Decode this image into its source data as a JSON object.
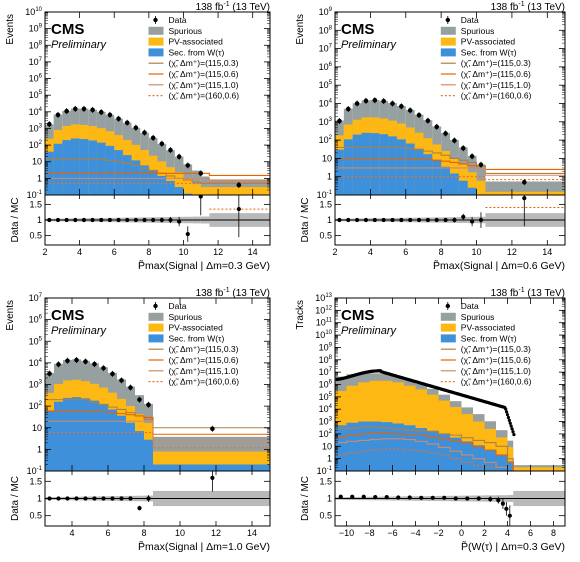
{
  "chart_data": [
    {
      "type": "bar",
      "lumi": "138 fb",
      "lumi_sup": "-1",
      "energy": "(13 TeV)",
      "experiment": "CMS",
      "status": "Preliminary",
      "ylabel": "Events",
      "ratio_label": "Data / MC",
      "xlabel": "P̃max(Signal | Δm=0.3 GeV)",
      "xlim": [
        2,
        15
      ],
      "xticks": [
        2,
        4,
        6,
        8,
        10,
        12,
        14
      ],
      "ylog": [
        -1,
        10
      ],
      "bins": [
        2.0,
        2.5,
        3.0,
        3.5,
        4.0,
        4.5,
        5.0,
        5.5,
        6.0,
        6.5,
        7.0,
        7.5,
        8.0,
        8.5,
        9.0,
        9.5,
        10.0,
        10.5,
        11.0,
        11.5,
        15.0
      ],
      "stack": {
        "spurious": [
          1500,
          6000,
          10000,
          14000,
          14000,
          12000,
          9000,
          6000,
          3500,
          2000,
          1000,
          500,
          250,
          110,
          45,
          18,
          6,
          2.5,
          1,
          0.5
        ],
        "pv": [
          200,
          700,
          1200,
          1500,
          1400,
          1200,
          900,
          600,
          350,
          180,
          90,
          45,
          20,
          9,
          4,
          2,
          0.8,
          0.4,
          0.2,
          0.2
        ],
        "sec": [
          40,
          120,
          200,
          250,
          230,
          190,
          140,
          90,
          50,
          25,
          12,
          6,
          3,
          1.4,
          0.7,
          0.3,
          0.12,
          0.05,
          0.1,
          0.1
        ]
      },
      "signals": [
        [
          15,
          15,
          15,
          15,
          15,
          15,
          15,
          12,
          10,
          8,
          6,
          4,
          3,
          2,
          1.4,
          1,
          0.8,
          0.6,
          0.5,
          0.5
        ],
        [
          2,
          2,
          2,
          2,
          2,
          2,
          2,
          2,
          2,
          2,
          2,
          2,
          2,
          2,
          2,
          2,
          2,
          2,
          2,
          1.5
        ],
        [
          1,
          1,
          1,
          1,
          1,
          1,
          1,
          1,
          1,
          1,
          1,
          1,
          1,
          1,
          1,
          1,
          1,
          1,
          1,
          0.8
        ],
        [
          0.5,
          0.5,
          0.5,
          0.5,
          0.5,
          0.5,
          0.5,
          0.5,
          0.5,
          0.5,
          0.5,
          0.5,
          0.5,
          0.5,
          0.5,
          0.5,
          0.5,
          0.5,
          0.5,
          0.6
        ]
      ],
      "data_x": [
        2.25,
        2.75,
        3.25,
        3.75,
        4.25,
        4.75,
        5.25,
        5.75,
        6.25,
        6.75,
        7.25,
        7.75,
        8.25,
        8.75,
        9.25,
        9.75,
        10.25,
        11.0,
        13.2
      ],
      "data_y": [
        1800,
        6500,
        11000,
        15000,
        15000,
        13000,
        9500,
        6500,
        3800,
        2200,
        1100,
        560,
        270,
        120,
        50,
        20,
        6,
        2,
        0.4
      ],
      "ratio_x": [
        2.25,
        2.75,
        3.25,
        3.75,
        4.25,
        4.75,
        5.25,
        5.75,
        6.25,
        6.75,
        7.25,
        7.75,
        8.25,
        8.75,
        9.25,
        9.75,
        10.25,
        11.0,
        13.2
      ],
      "ratio_y": [
        1.0,
        1.0,
        1.0,
        1.0,
        1.0,
        1.0,
        1.0,
        1.0,
        1.0,
        1.0,
        1.0,
        1.0,
        1.0,
        1.0,
        1.0,
        0.95,
        0.55,
        1.75,
        1.35
      ],
      "ratio_err": [
        0.02,
        0.02,
        0.02,
        0.02,
        0.02,
        0.02,
        0.02,
        0.02,
        0.02,
        0.03,
        0.04,
        0.05,
        0.06,
        0.08,
        0.1,
        0.15,
        0.25,
        0.6,
        0.9
      ],
      "ratio_ylim": [
        0.2,
        1.8
      ],
      "ratio_yticks": [
        0.5,
        1,
        1.5
      ],
      "ratio_sig_line": 1.35
    },
    {
      "type": "bar",
      "lumi": "138 fb",
      "lumi_sup": "-1",
      "energy": "(13 TeV)",
      "experiment": "CMS",
      "status": "Preliminary",
      "ylabel": "Events",
      "ratio_label": "Data / MC",
      "xlabel": "P̃max(Signal | Δm=0.6 GeV)",
      "xlim": [
        2,
        15
      ],
      "xticks": [
        2,
        4,
        6,
        8,
        10,
        12,
        14
      ],
      "ylog": [
        -1,
        9
      ],
      "bins": [
        2.0,
        2.5,
        3.0,
        3.5,
        4.0,
        4.5,
        5.0,
        5.5,
        6.0,
        6.5,
        7.0,
        7.5,
        8.0,
        8.5,
        9.0,
        9.5,
        10.0,
        10.5,
        15.0
      ],
      "stack": {
        "spurious": [
          1000,
          4500,
          9000,
          13000,
          14000,
          12500,
          9500,
          6500,
          4000,
          2200,
          1100,
          500,
          220,
          90,
          35,
          12,
          4,
          0.4
        ],
        "pv": [
          150,
          600,
          1100,
          1500,
          1500,
          1300,
          1000,
          700,
          420,
          220,
          110,
          50,
          22,
          9,
          4,
          1.5,
          0.5,
          0.1
        ],
        "sec": [
          30,
          110,
          200,
          250,
          240,
          210,
          160,
          110,
          65,
          34,
          17,
          8,
          3.5,
          1.5,
          0.6,
          0.25,
          0.1,
          0.05
        ]
      },
      "signals": [
        [
          40,
          40,
          40,
          40,
          40,
          40,
          40,
          40,
          35,
          30,
          25,
          20,
          15,
          10,
          8,
          6,
          4,
          1.5
        ],
        [
          10,
          10,
          10,
          10,
          10,
          10,
          10,
          10,
          10,
          9,
          9,
          8,
          7,
          6,
          5,
          4,
          3,
          2.5
        ],
        [
          3,
          3,
          3,
          3,
          3,
          3,
          3,
          3,
          3,
          3,
          3,
          3,
          3,
          3,
          3,
          3,
          3,
          1.2
        ],
        [
          1,
          1,
          1,
          1,
          1,
          1,
          1,
          1,
          1,
          1,
          1,
          1,
          1,
          1,
          1,
          1,
          1,
          0.7
        ]
      ],
      "data_x": [
        2.25,
        2.75,
        3.25,
        3.75,
        4.25,
        4.75,
        5.25,
        5.75,
        6.25,
        6.75,
        7.25,
        7.75,
        8.25,
        8.75,
        9.25,
        9.75,
        10.25,
        12.7
      ],
      "data_y": [
        1100,
        5000,
        10000,
        14000,
        15000,
        13500,
        10000,
        7000,
        4200,
        2300,
        1150,
        530,
        230,
        95,
        36,
        13,
        4.5,
        0.5
      ],
      "ratio_x": [
        2.25,
        2.75,
        3.25,
        3.75,
        4.25,
        4.75,
        5.25,
        5.75,
        6.25,
        6.75,
        7.25,
        7.75,
        8.25,
        8.75,
        9.25,
        9.75,
        10.25,
        12.7
      ],
      "ratio_y": [
        1.0,
        1.0,
        1.0,
        1.0,
        1.0,
        1.0,
        1.0,
        1.0,
        1.0,
        1.0,
        1.0,
        1.0,
        1.0,
        1.0,
        1.1,
        0.95,
        1.0,
        1.7
      ],
      "ratio_err": [
        0.02,
        0.02,
        0.02,
        0.02,
        0.02,
        0.02,
        0.02,
        0.02,
        0.02,
        0.03,
        0.04,
        0.05,
        0.06,
        0.08,
        0.1,
        0.15,
        0.25,
        0.9
      ],
      "ratio_ylim": [
        0.2,
        1.8
      ],
      "ratio_yticks": [
        0.5,
        1,
        1.5
      ],
      "ratio_sig_line": 1.4
    },
    {
      "type": "bar",
      "lumi": "138 fb",
      "lumi_sup": "-1",
      "energy": "(13 TeV)",
      "experiment": "CMS",
      "status": "Preliminary",
      "ylabel": "Events",
      "ratio_label": "Data / MC",
      "xlabel": "P̃max(Signal | Δm=1.0 GeV)",
      "xlim": [
        2.5,
        15
      ],
      "xticks": [
        4,
        6,
        8,
        10,
        12,
        14
      ],
      "ylog": [
        -1,
        7
      ],
      "bins": [
        2.5,
        3.0,
        3.5,
        4.0,
        4.5,
        5.0,
        5.5,
        6.0,
        6.5,
        7.0,
        7.5,
        8.0,
        8.5,
        15.0
      ],
      "stack": {
        "spurious": [
          3000,
          8000,
          12000,
          13000,
          11000,
          8500,
          5500,
          3000,
          1500,
          700,
          280,
          110,
          3
        ],
        "pv": [
          350,
          900,
          1300,
          1400,
          1200,
          900,
          600,
          350,
          180,
          85,
          35,
          14,
          0.6
        ],
        "sec": [
          60,
          160,
          240,
          260,
          230,
          180,
          120,
          70,
          36,
          17,
          7,
          2.8,
          0.2
        ]
      },
      "signals": [
        [
          200,
          200,
          200,
          200,
          200,
          150,
          120,
          90,
          70,
          50,
          35,
          25,
          10
        ],
        [
          60,
          60,
          60,
          60,
          60,
          60,
          55,
          50,
          45,
          40,
          35,
          30,
          5
        ],
        [
          20,
          20,
          20,
          20,
          20,
          20,
          20,
          20,
          20,
          20,
          20,
          20,
          2.5
        ],
        [
          6,
          6,
          6,
          6,
          6,
          6,
          6,
          6,
          6,
          6,
          6,
          6,
          1.2
        ]
      ],
      "data_x": [
        2.75,
        3.25,
        3.75,
        4.25,
        4.75,
        5.25,
        5.75,
        6.25,
        6.75,
        7.25,
        7.75,
        8.25,
        11.8
      ],
      "data_y": [
        3200,
        8500,
        12500,
        13500,
        11500,
        8800,
        5700,
        3100,
        1550,
        720,
        200,
        115,
        9
      ],
      "ratio_x": [
        2.75,
        3.25,
        3.75,
        4.25,
        4.75,
        5.25,
        5.75,
        6.25,
        6.75,
        7.25,
        7.75,
        8.25,
        11.8
      ],
      "ratio_y": [
        1.0,
        1.0,
        1.0,
        1.0,
        1.0,
        1.0,
        1.0,
        1.0,
        1.0,
        1.0,
        0.72,
        1.0,
        1.6
      ],
      "ratio_err": [
        0.02,
        0.02,
        0.02,
        0.02,
        0.02,
        0.02,
        0.02,
        0.03,
        0.04,
        0.05,
        0.07,
        0.1,
        0.4
      ],
      "ratio_ylim": [
        0.2,
        1.8
      ],
      "ratio_yticks": [
        0.5,
        1,
        1.5
      ],
      "ratio_sig_line": null
    },
    {
      "type": "bar",
      "lumi": "138 fb",
      "lumi_sup": "-1",
      "energy": "(13 TeV)",
      "experiment": "CMS",
      "status": "Preliminary",
      "ylabel": "Tracks",
      "ratio_label": "Data / MC",
      "xlabel": "P̃(W(τ) | Δm=0.3 GeV)",
      "xlim": [
        -11,
        9
      ],
      "xticks": [
        -10,
        -8,
        -6,
        -4,
        -2,
        0,
        2,
        4,
        6,
        8
      ],
      "ylog": [
        -1,
        13
      ],
      "stack_edges": [
        -11,
        -10,
        -9,
        -8,
        -7,
        -6,
        -5,
        -4,
        -3,
        -2,
        -1,
        0,
        1,
        2,
        3,
        4,
        4.5,
        9
      ],
      "stack": {
        "spurious": [
          4000000.0,
          6000000.0,
          7000000.0,
          6000000.0,
          5000000.0,
          3000000.0,
          1500000.0,
          700000.0,
          300000.0,
          100000.0,
          30000.0,
          10000.0,
          3000,
          800,
          150,
          20,
          0.1
        ],
        "pv": [
          300000.0,
          800000.0,
          1500000.0,
          2000000.0,
          2000000.0,
          1500000.0,
          800000.0,
          400000.0,
          150000.0,
          50000.0,
          15000.0,
          4000,
          1000,
          250,
          50,
          8,
          0.1
        ],
        "sec": [
          500,
          800,
          1000,
          1000,
          900,
          700,
          500,
          300,
          180,
          100,
          50,
          25,
          12,
          5,
          2,
          0.6,
          0.1
        ]
      },
      "signals": [
        [
          300,
          300,
          350,
          350,
          300,
          250,
          200,
          180,
          150,
          100,
          80,
          50,
          30,
          20,
          10,
          1,
          0.1
        ],
        [
          60,
          80,
          100,
          120,
          110,
          100,
          90,
          80,
          60,
          40,
          30,
          20,
          10,
          5,
          2,
          0.5,
          0.1
        ],
        [
          20,
          25,
          30,
          35,
          40,
          40,
          35,
          25,
          15,
          8,
          4,
          2,
          1,
          0.5,
          0.2,
          0.1,
          0.1
        ],
        [
          2,
          3,
          4,
          5,
          6,
          6,
          5,
          4,
          3,
          2,
          1,
          0.5,
          0.3,
          0.2,
          0.1,
          0.1,
          0.1
        ]
      ],
      "data_points_range": [
        -10.8,
        4.6
      ],
      "data_points_peak": 20000000.0,
      "ratio_x": [
        -10.5,
        -9.5,
        -8.5,
        -7.5,
        -6.5,
        -5.5,
        -4.5,
        -3.5,
        -2.5,
        -1.5,
        -0.5,
        0.5,
        1.5,
        2.5,
        3.2,
        3.6,
        3.9,
        4.2
      ],
      "ratio_y": [
        1.05,
        1.05,
        1.05,
        1.04,
        1.04,
        1.03,
        1.03,
        1.02,
        1.02,
        1.02,
        1.0,
        1.0,
        1.0,
        0.98,
        0.95,
        0.85,
        0.7,
        0.5
      ],
      "ratio_err": [
        0.02,
        0.02,
        0.02,
        0.02,
        0.02,
        0.02,
        0.02,
        0.02,
        0.03,
        0.03,
        0.04,
        0.05,
        0.06,
        0.08,
        0.1,
        0.15,
        0.2,
        0.3
      ],
      "ratio_ylim": [
        0.2,
        1.8
      ],
      "ratio_yticks": [
        0.5,
        1,
        1.5
      ],
      "ratio_sig_line": null
    }
  ],
  "legend": [
    {
      "label": "Data",
      "kind": "data"
    },
    {
      "label": "Spurious",
      "color": "#96a0a0",
      "kind": "fill"
    },
    {
      "label": "PV-associated",
      "color": "#fdb813",
      "kind": "fill"
    },
    {
      "label": "Sec. from W(τ)",
      "color": "#3f90da",
      "kind": "fill"
    },
    {
      "label": "(χ̃, Δm⁺)=(115,0.3)",
      "color": "#b08040",
      "kind": "line"
    },
    {
      "label": "(χ̃, Δm⁺)=(115,0.6)",
      "color": "#e76300",
      "kind": "line"
    },
    {
      "label": "(χ̃, Δm⁺)=(115,1.0)",
      "color": "#d08a6a",
      "kind": "line"
    },
    {
      "label": "(χ̃, Δm⁺)=(160,0.6)",
      "color": "#f07020",
      "kind": "dotted"
    }
  ]
}
